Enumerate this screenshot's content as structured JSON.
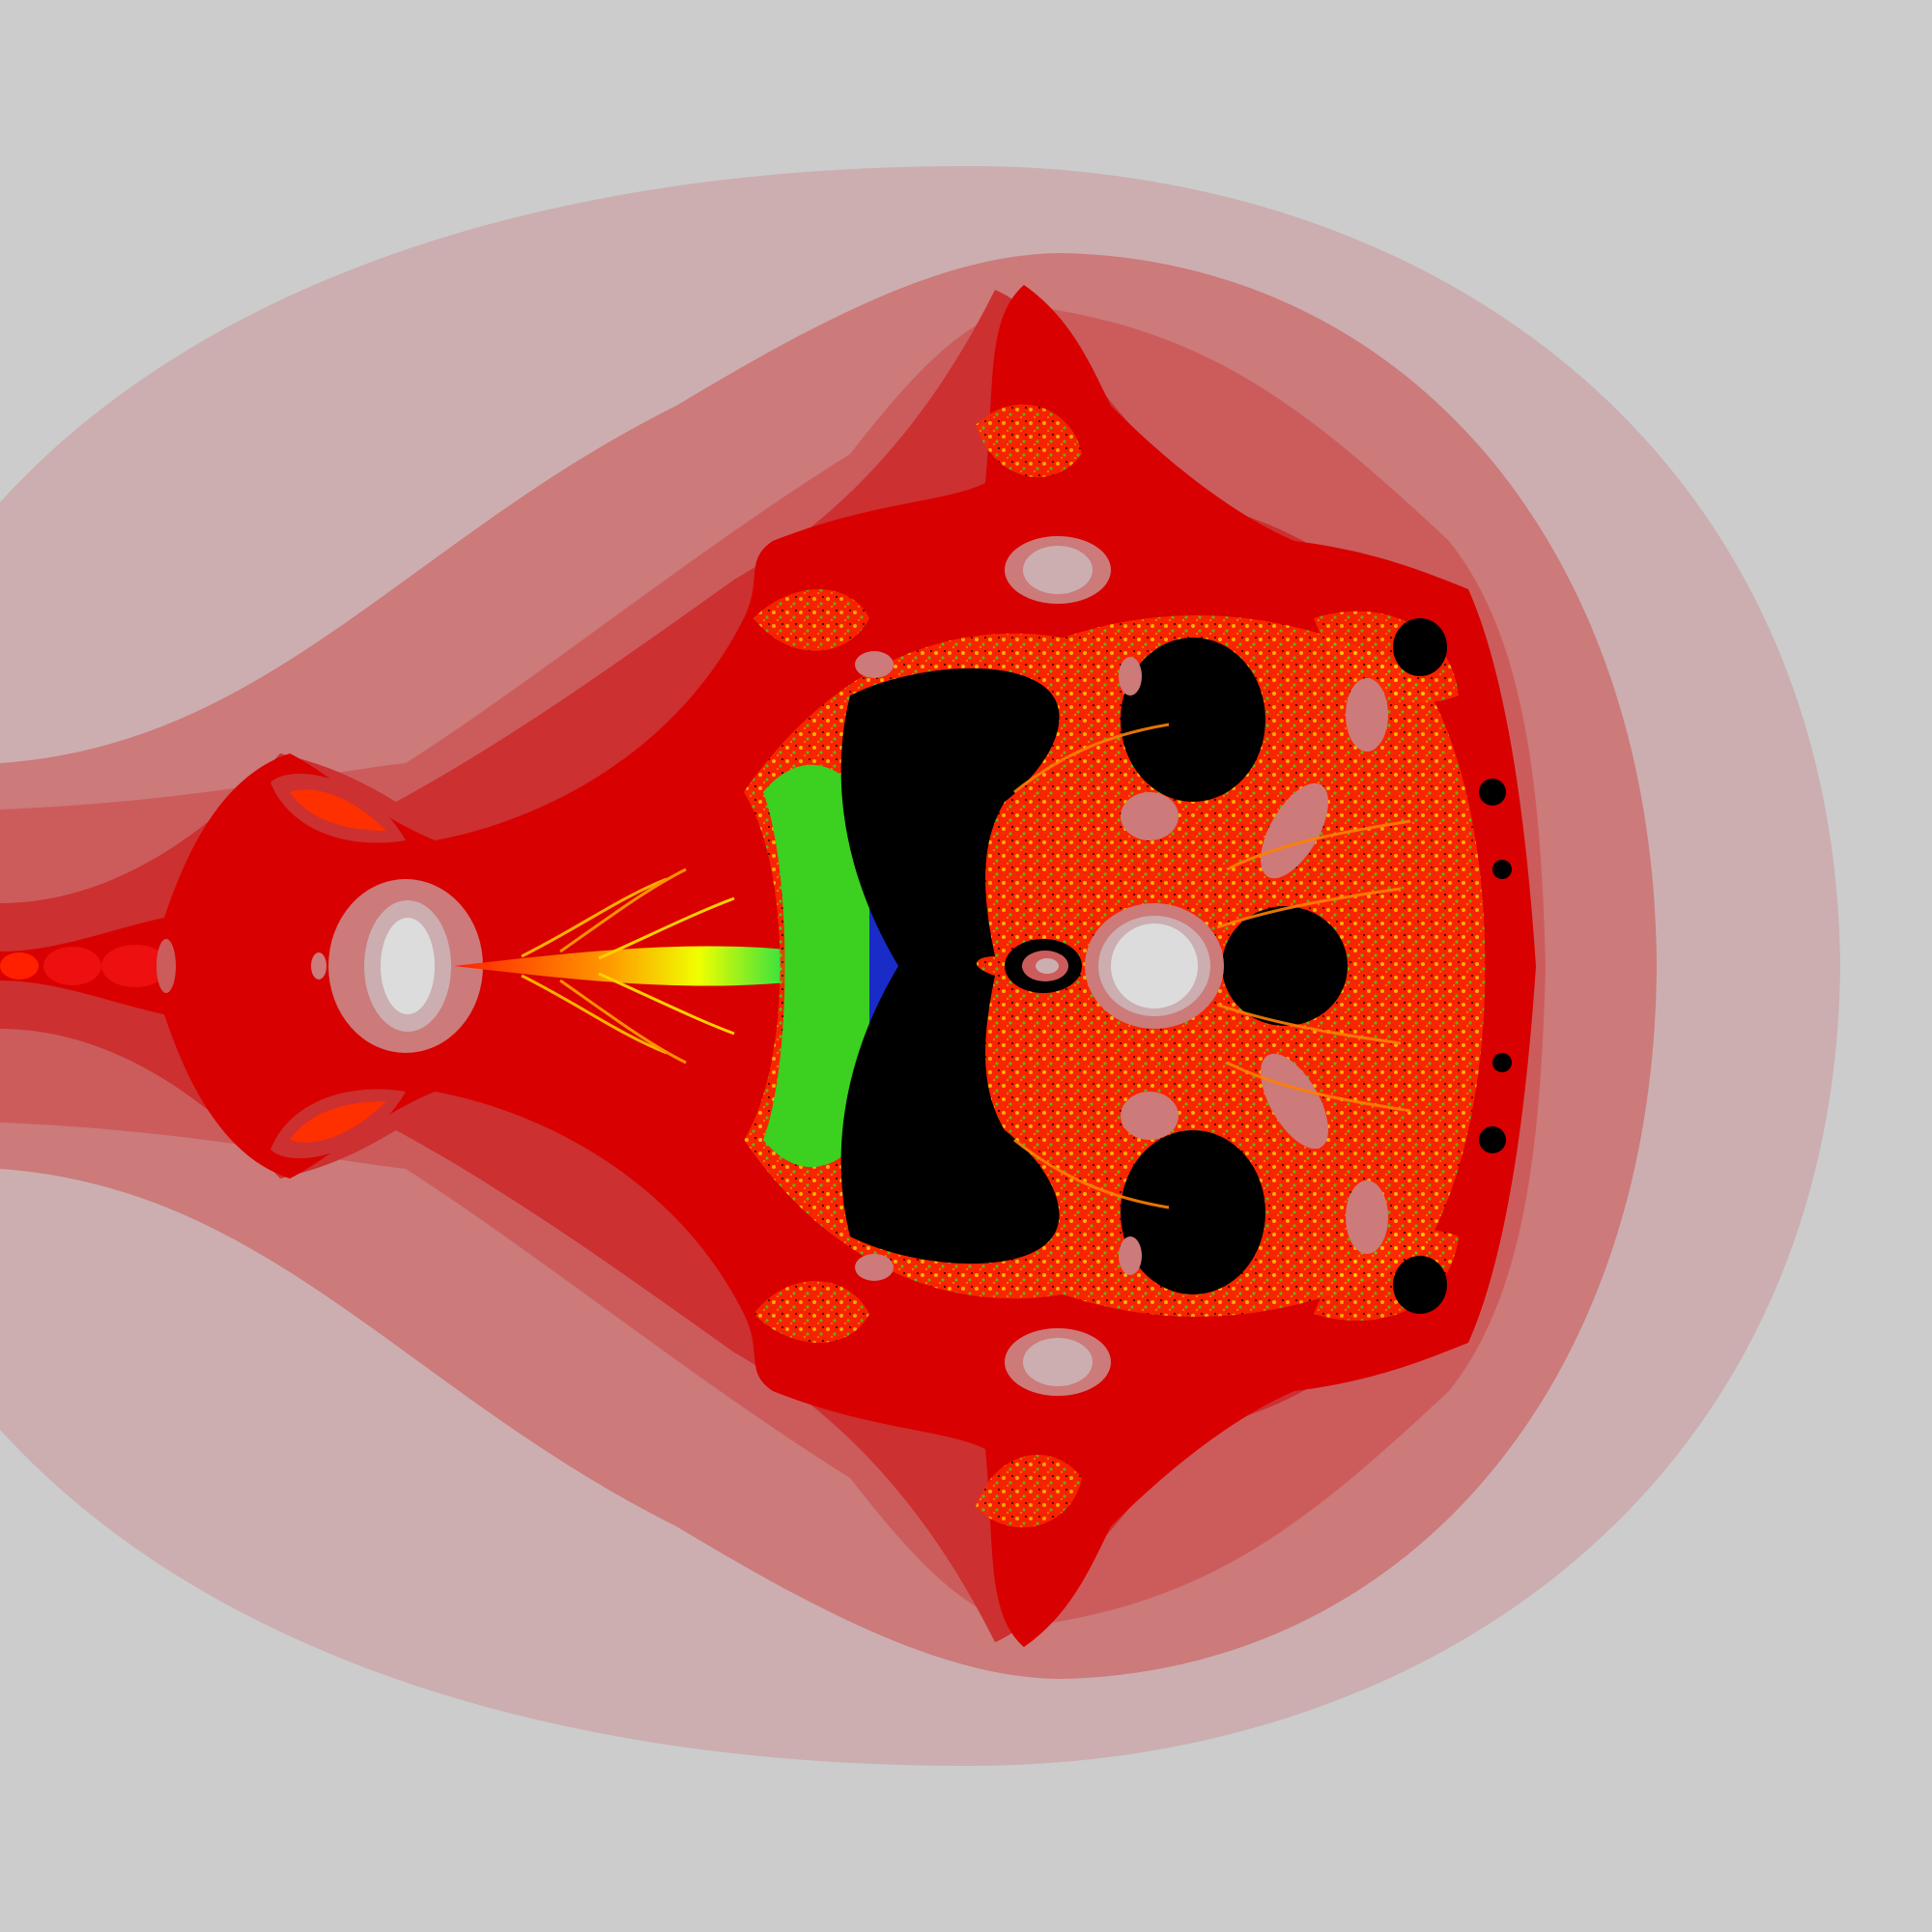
{
  "image": {
    "subject": "fractal-escape-time-render",
    "colors": {
      "background": "#cccccc",
      "band_outer": "#ccaeb0",
      "band_2": "#cc7a7a",
      "band_3": "#cc5c5c",
      "band_4": "#cc3030",
      "band_inner": "#d80000",
      "interior": "#000000",
      "hole_pale": "#ccaeb0",
      "hole_core": "#dcdcdc",
      "filament_orange": "#ff7a00",
      "filament_yellow": "#ffe800",
      "filament_green": "#3cd020",
      "filament_blue": "#1a2cc8"
    }
  }
}
